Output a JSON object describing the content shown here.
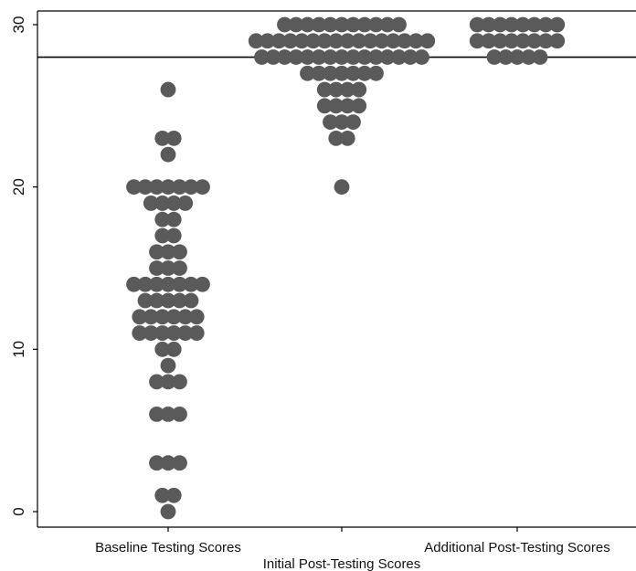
{
  "chart_data": {
    "type": "scatter",
    "subtype": "dot-strip",
    "title": "",
    "xlabel": "",
    "ylabel": "",
    "ylim": [
      0,
      30
    ],
    "yticks": [
      "0",
      "10",
      "20",
      "30"
    ],
    "reference_line": 28,
    "grid": false,
    "legend": "none",
    "marker_color": "#5a5a5a",
    "line_color": "#000000",
    "categories": [
      "Baseline Testing Scores",
      "Initial Post-Testing Scores",
      "Additional Post-Testing Scores"
    ],
    "series": [
      {
        "category": "Baseline Testing Scores",
        "counts": [
          {
            "y": 0,
            "n": 1
          },
          {
            "y": 1,
            "n": 2
          },
          {
            "y": 3,
            "n": 3
          },
          {
            "y": 6,
            "n": 3
          },
          {
            "y": 8,
            "n": 3
          },
          {
            "y": 9,
            "n": 1
          },
          {
            "y": 10,
            "n": 2
          },
          {
            "y": 11,
            "n": 6
          },
          {
            "y": 12,
            "n": 6
          },
          {
            "y": 13,
            "n": 5
          },
          {
            "y": 14,
            "n": 7
          },
          {
            "y": 15,
            "n": 3
          },
          {
            "y": 16,
            "n": 3
          },
          {
            "y": 17,
            "n": 2
          },
          {
            "y": 18,
            "n": 2
          },
          {
            "y": 19,
            "n": 4
          },
          {
            "y": 20,
            "n": 7
          },
          {
            "y": 22,
            "n": 1
          },
          {
            "y": 23,
            "n": 2
          },
          {
            "y": 26,
            "n": 1
          }
        ]
      },
      {
        "category": "Initial Post-Testing Scores",
        "counts": [
          {
            "y": 20,
            "n": 1
          },
          {
            "y": 23,
            "n": 2
          },
          {
            "y": 24,
            "n": 3
          },
          {
            "y": 25,
            "n": 4
          },
          {
            "y": 26,
            "n": 4
          },
          {
            "y": 27,
            "n": 7
          },
          {
            "y": 28,
            "n": 15
          },
          {
            "y": 29,
            "n": 16
          },
          {
            "y": 30,
            "n": 11
          }
        ]
      },
      {
        "category": "Additional Post-Testing Scores",
        "counts": [
          {
            "y": 28,
            "n": 5
          },
          {
            "y": 29,
            "n": 8
          },
          {
            "y": 30,
            "n": 8
          }
        ]
      }
    ]
  }
}
